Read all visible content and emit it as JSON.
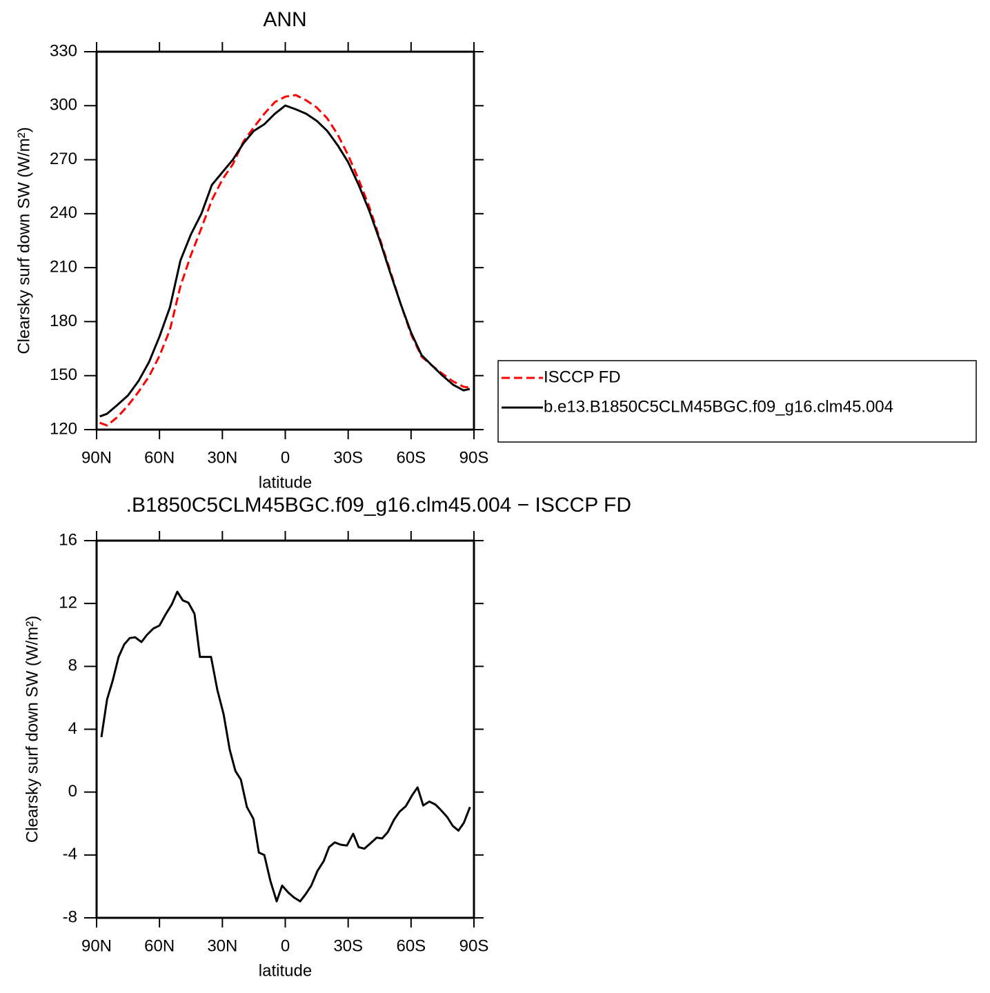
{
  "chart_data": [
    {
      "type": "line",
      "title": "ANN",
      "xlabel": "latitude",
      "ylabel": "Clearsky surf down SW (W/m²)",
      "x": [
        88.5,
        85,
        80,
        75,
        70,
        65,
        60,
        55,
        50,
        45,
        40,
        35,
        30,
        25,
        20,
        15,
        10,
        5,
        0,
        -5,
        -10,
        -15,
        -20,
        -25,
        -30,
        -35,
        -40,
        -45,
        -50,
        -55,
        -60,
        -65,
        -70,
        -75,
        -80,
        -85,
        -88
      ],
      "series": [
        {
          "name": "ISCCP FD",
          "color": "#ff0000",
          "dashed": true,
          "values": [
            123.8,
            122.3,
            127,
            133.4,
            141,
            149.5,
            161,
            175.5,
            199.7,
            217,
            232,
            247.6,
            259,
            267.5,
            280,
            288,
            295.5,
            302,
            305,
            305.9,
            303,
            299,
            293,
            284,
            272.5,
            259,
            244,
            226.5,
            208.5,
            190,
            173,
            160.6,
            155.6,
            151,
            146.8,
            143.8,
            143.4
          ]
        },
        {
          "name": "b.e13.B1850C5CLM45BGC.f09_g16.clm45.004",
          "color": "#000000",
          "dashed": false,
          "values": [
            127.3,
            128.8,
            133.8,
            139,
            147,
            157.5,
            171.7,
            188,
            214,
            228.5,
            240,
            256,
            263,
            270,
            279,
            286,
            289.7,
            295.5,
            300.1,
            298,
            295.5,
            291.6,
            286,
            278,
            268.6,
            256,
            241.8,
            225.4,
            207.4,
            190,
            174,
            161.4,
            155.6,
            150,
            145,
            141.8,
            142.6
          ]
        }
      ],
      "xlim": [
        90,
        -90
      ],
      "xticks": [
        {
          "value": 90,
          "label": "90N"
        },
        {
          "value": 60,
          "label": "60N"
        },
        {
          "value": 30,
          "label": "30N"
        },
        0,
        {
          "value": -30,
          "label": "30S"
        },
        {
          "value": -60,
          "label": "60S"
        },
        {
          "value": -90,
          "label": "90S"
        }
      ],
      "ylim": [
        120,
        330
      ],
      "yticks": [
        120,
        150,
        180,
        210,
        240,
        270,
        300,
        330
      ],
      "legend": "right"
    },
    {
      "type": "line",
      "title": ".B1850C5CLM45BGC.f09_g16.clm45.004 − ISCCP FD",
      "xlabel": "latitude",
      "ylabel": "Clearsky surf down SW (W/m²)",
      "x": [
        87.7,
        85,
        82.4,
        79.5,
        76.8,
        74.2,
        71.6,
        68.6,
        66,
        63,
        60,
        57.1,
        54.1,
        51.5,
        48.9,
        46.2,
        43.3,
        40.7,
        38,
        35.4,
        32.4,
        29.4,
        26.5,
        23.8,
        21.2,
        18.3,
        15.2,
        12.6,
        10,
        7.1,
        4.1,
        1.5,
        -1.5,
        -4.1,
        -7.1,
        -9.7,
        -12.4,
        -15.4,
        -18.3,
        -20.9,
        -23.6,
        -26.5,
        -29.4,
        -32.4,
        -35,
        -37.7,
        -40.7,
        -43.6,
        -46.2,
        -48.9,
        -51.9,
        -54.5,
        -57.5,
        -60.5,
        -63.1,
        -65.8,
        -68.7,
        -71.7,
        -74.3,
        -77.3,
        -79.9,
        -82.6,
        -85.2,
        -88.1
      ],
      "series": [
        {
          "color": "#000000",
          "dashed": false,
          "values": [
            3.5,
            5.9,
            7.05,
            8.6,
            9.4,
            9.8,
            9.85,
            9.55,
            10.0,
            10.4,
            10.6,
            11.3,
            11.95,
            12.75,
            12.2,
            12.05,
            11.35,
            8.6,
            8.6,
            8.6,
            6.5,
            4.95,
            2.7,
            1.35,
            0.8,
            -0.95,
            -1.7,
            -3.85,
            -4.0,
            -5.65,
            -6.95,
            -5.95,
            -6.4,
            -6.7,
            -6.95,
            -6.5,
            -5.95,
            -5.0,
            -4.4,
            -3.5,
            -3.2,
            -3.35,
            -3.4,
            -2.65,
            -3.5,
            -3.6,
            -3.25,
            -2.9,
            -2.95,
            -2.55,
            -1.75,
            -1.25,
            -0.9,
            -0.2,
            0.3,
            -0.85,
            -0.6,
            -0.8,
            -1.15,
            -1.6,
            -2.15,
            -2.45,
            -1.95,
            -0.95
          ]
        }
      ],
      "xlim": [
        90,
        -90
      ],
      "xticks": [
        {
          "value": 90,
          "label": "90N"
        },
        {
          "value": 60,
          "label": "60N"
        },
        {
          "value": 30,
          "label": "30N"
        },
        0,
        {
          "value": -30,
          "label": "30S"
        },
        {
          "value": -60,
          "label": "60S"
        },
        {
          "value": -90,
          "label": "90S"
        }
      ],
      "ylim": [
        -8,
        16
      ],
      "yticks": [
        -8,
        -4,
        0,
        4,
        8,
        12,
        16
      ]
    }
  ]
}
